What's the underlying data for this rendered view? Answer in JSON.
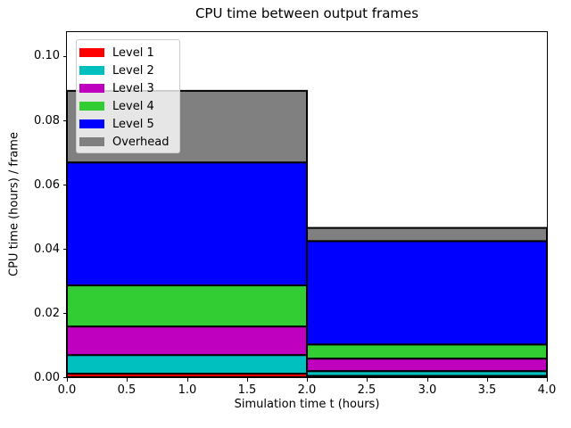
{
  "figure": {
    "background": "#ffffff",
    "text_color": "#000000"
  },
  "chart_data": {
    "type": "bar",
    "stacked": true,
    "title": "CPU time between output frames",
    "xlabel": "Simulation time t (hours)",
    "ylabel": "CPU time (hours) / frame",
    "xlim": [
      0.0,
      4.0
    ],
    "ylim": [
      0.0,
      0.1075
    ],
    "grid": false,
    "legend_position": "upper left",
    "axis_color": "#000000",
    "bar_edge_color": "#000000",
    "xticks": {
      "values": [
        0.0,
        0.5,
        1.0,
        1.5,
        2.0,
        2.5,
        3.0,
        3.5,
        4.0
      ],
      "labels": [
        "0.0",
        "0.5",
        "1.0",
        "1.5",
        "2.0",
        "2.5",
        "3.0",
        "3.5",
        "4.0"
      ]
    },
    "yticks": {
      "values": [
        0.0,
        0.02,
        0.04,
        0.06,
        0.08,
        0.1
      ],
      "labels": [
        "0.00",
        "0.02",
        "0.04",
        "0.06",
        "0.08",
        "0.10"
      ]
    },
    "bars_x": [
      {
        "start": 0.0,
        "end": 2.0
      },
      {
        "start": 2.0,
        "end": 4.0
      }
    ],
    "series": [
      {
        "name": "Level 1",
        "color": "#ff0000",
        "values": [
          0.0011,
          0.0004
        ]
      },
      {
        "name": "Level 2",
        "color": "#00bfbf",
        "values": [
          0.0058,
          0.0015
        ]
      },
      {
        "name": "Level 3",
        "color": "#bf00bf",
        "values": [
          0.0089,
          0.0039
        ]
      },
      {
        "name": "Level 4",
        "color": "#32cd32",
        "values": [
          0.0128,
          0.0044
        ]
      },
      {
        "name": "Level 5",
        "color": "#0000ff",
        "values": [
          0.0383,
          0.0322
        ]
      },
      {
        "name": "Overhead",
        "color": "#808080",
        "values": [
          0.0223,
          0.0041
        ]
      }
    ]
  }
}
